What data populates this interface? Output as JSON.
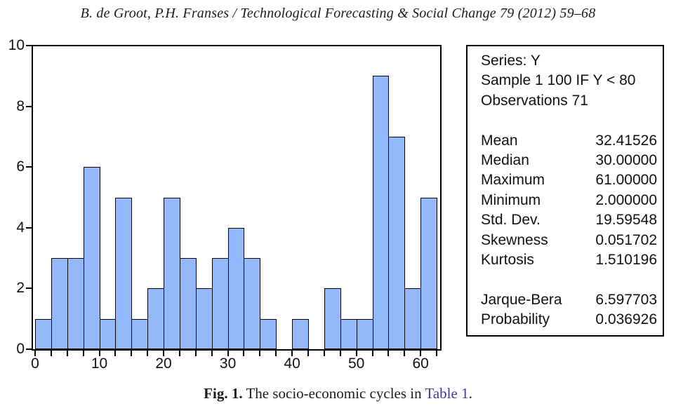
{
  "header": {
    "text": "B. de Groot, P.H. Franses / Technological Forecasting & Social Change 79 (2012) 59–68"
  },
  "stats": {
    "header_lines": [
      "Series: Y",
      "Sample 1 100 IF Y < 80",
      "Observations 71"
    ],
    "rows": [
      {
        "label": "Mean",
        "value": "32.41526"
      },
      {
        "label": "Median",
        "value": "30.00000"
      },
      {
        "label": "Maximum",
        "value": "61.00000"
      },
      {
        "label": "Minimum",
        "value": "2.000000"
      },
      {
        "label": "Std. Dev.",
        "value": "19.59548"
      },
      {
        "label": "Skewness",
        "value": "0.051702"
      },
      {
        "label": "Kurtosis",
        "value": "1.510196"
      }
    ],
    "rows2": [
      {
        "label": "Jarque-Bera",
        "value": "6.597703"
      },
      {
        "label": "Probability",
        "value": "0.036926"
      }
    ]
  },
  "chart_data": {
    "type": "bar",
    "subtype": "histogram",
    "series_name": "Y",
    "bin_start": 0,
    "bin_end": 62.5,
    "bin_width": 2.5,
    "values": [
      1,
      3,
      3,
      6,
      1,
      5,
      1,
      2,
      5,
      3,
      2,
      3,
      4,
      3,
      1,
      0,
      1,
      0,
      2,
      1,
      1,
      9,
      7,
      2,
      5
    ],
    "observations_total": 71,
    "x_tick_step": 2.5,
    "x_label_values": [
      0,
      10,
      20,
      30,
      40,
      50,
      60
    ],
    "x_tick_labels": [
      "0",
      "10",
      "20",
      "30",
      "40",
      "50",
      "60"
    ],
    "y_tick_values": [
      0,
      2,
      4,
      6,
      8,
      10
    ],
    "y_ticks": [
      "0",
      "2",
      "4",
      "6",
      "8",
      "10"
    ],
    "ylim": [
      0,
      10
    ],
    "grid": false,
    "legend": "none",
    "bar_fill": "#93b9fc",
    "bar_border": "#000000"
  },
  "caption": {
    "label": "Fig. 1.",
    "text": " The socio-economic cycles in ",
    "link": "Table 1",
    "suffix": ".",
    "link_color": "#3b3b97"
  }
}
